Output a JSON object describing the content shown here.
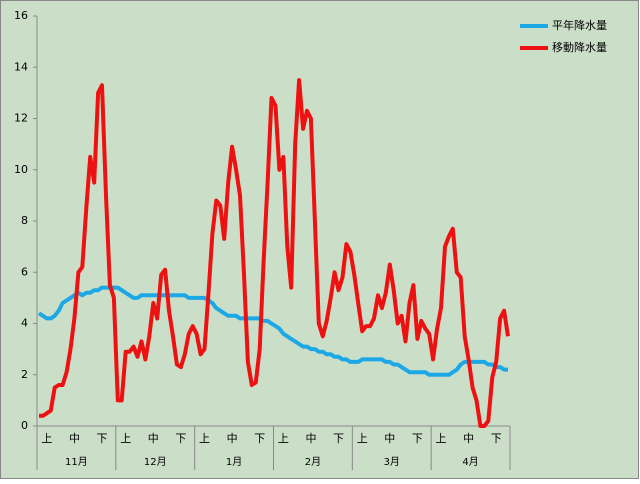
{
  "chart_data": {
    "type": "line",
    "categories": [
      null,
      null,
      "上",
      null,
      null,
      null,
      null,
      null,
      null,
      "中",
      null,
      null,
      null,
      null,
      null,
      null,
      "下",
      null,
      null,
      null,
      null,
      null,
      "上",
      null,
      null,
      null,
      null,
      null,
      null,
      "中",
      null,
      null,
      null,
      null,
      null,
      null,
      "下",
      null,
      null,
      null,
      null,
      null,
      "上",
      null,
      null,
      null,
      null,
      null,
      null,
      "中",
      null,
      null,
      null,
      null,
      null,
      null,
      "下",
      null,
      null,
      null,
      null,
      null,
      "上",
      null,
      null,
      null,
      null,
      null,
      null,
      "中",
      null,
      null,
      null,
      null,
      null,
      null,
      "下",
      null,
      null,
      null,
      null,
      null,
      "上",
      null,
      null,
      null,
      null,
      null,
      null,
      "中",
      null,
      null,
      null,
      null,
      null,
      null,
      "下",
      null,
      null,
      null,
      null,
      null,
      "上",
      null,
      null,
      null,
      null,
      null,
      null,
      "中",
      null,
      null,
      null,
      null,
      null,
      null,
      "下",
      null,
      null,
      null
    ],
    "groups": [
      "11月",
      "12月",
      "1月",
      "2月",
      "3月",
      "4月"
    ],
    "series": [
      {
        "name": "平年降水量",
        "color": "#1ca8e6",
        "values": [
          4.4,
          4.3,
          4.2,
          4.2,
          4.3,
          4.5,
          4.8,
          4.9,
          5.0,
          5.1,
          5.2,
          5.1,
          5.2,
          5.2,
          5.3,
          5.3,
          5.4,
          5.4,
          5.4,
          5.4,
          5.4,
          5.3,
          5.2,
          5.1,
          5.0,
          5.0,
          5.1,
          5.1,
          5.1,
          5.1,
          5.1,
          5.1,
          5.1,
          5.1,
          5.1,
          5.1,
          5.1,
          5.1,
          5.0,
          5.0,
          5.0,
          5.0,
          5.0,
          4.9,
          4.8,
          4.6,
          4.5,
          4.4,
          4.3,
          4.3,
          4.3,
          4.2,
          4.2,
          4.2,
          4.2,
          4.2,
          4.2,
          4.1,
          4.1,
          4.0,
          3.9,
          3.8,
          3.6,
          3.5,
          3.4,
          3.3,
          3.2,
          3.1,
          3.1,
          3.0,
          3.0,
          2.9,
          2.9,
          2.8,
          2.8,
          2.7,
          2.7,
          2.6,
          2.6,
          2.5,
          2.5,
          2.5,
          2.6,
          2.6,
          2.6,
          2.6,
          2.6,
          2.6,
          2.5,
          2.5,
          2.4,
          2.4,
          2.3,
          2.2,
          2.1,
          2.1,
          2.1,
          2.1,
          2.1,
          2.0,
          2.0,
          2.0,
          2.0,
          2.0,
          2.0,
          2.1,
          2.2,
          2.4,
          2.5,
          2.5,
          2.5,
          2.5,
          2.5,
          2.5,
          2.4,
          2.4,
          2.3,
          2.3,
          2.2,
          2.2
        ]
      },
      {
        "name": "移動降水量",
        "color": "#ee1111",
        "values": [
          0.4,
          0.4,
          0.5,
          0.6,
          1.5,
          1.6,
          1.6,
          2.1,
          3.0,
          4.2,
          6.0,
          6.2,
          8.5,
          10.5,
          9.5,
          13.0,
          13.3,
          9.0,
          5.5,
          5.0,
          1.0,
          1.0,
          2.9,
          2.9,
          3.1,
          2.7,
          3.3,
          2.6,
          3.5,
          4.8,
          4.2,
          5.9,
          6.1,
          4.5,
          3.5,
          2.4,
          2.3,
          2.8,
          3.6,
          3.9,
          3.6,
          2.8,
          3.0,
          5.2,
          7.5,
          8.8,
          8.6,
          7.3,
          9.5,
          10.9,
          10.0,
          9.0,
          6.0,
          2.5,
          1.6,
          1.7,
          3.0,
          6.4,
          9.5,
          12.8,
          12.5,
          10.0,
          10.5,
          7.0,
          5.4,
          11.0,
          13.5,
          11.6,
          12.3,
          12.0,
          8.0,
          4.0,
          3.5,
          4.1,
          5.0,
          6.0,
          5.3,
          5.8,
          7.1,
          6.8,
          5.9,
          4.8,
          3.7,
          3.9,
          3.9,
          4.2,
          5.1,
          4.6,
          5.2,
          6.3,
          5.3,
          4.0,
          4.3,
          3.3,
          4.8,
          5.5,
          3.4,
          4.1,
          3.8,
          3.6,
          2.6,
          3.8,
          4.6,
          7.0,
          7.4,
          7.7,
          6.0,
          5.8,
          3.5,
          2.6,
          1.5,
          1.0,
          0.0,
          0.0,
          0.2,
          1.9,
          2.5,
          4.2,
          4.5,
          3.5
        ]
      }
    ],
    "ylim": [
      0,
      16
    ],
    "yticks": [
      0,
      2,
      4,
      6,
      8,
      10,
      12,
      14,
      16
    ],
    "grid": false,
    "legend_position": "right",
    "background": "#cbdfc8"
  }
}
